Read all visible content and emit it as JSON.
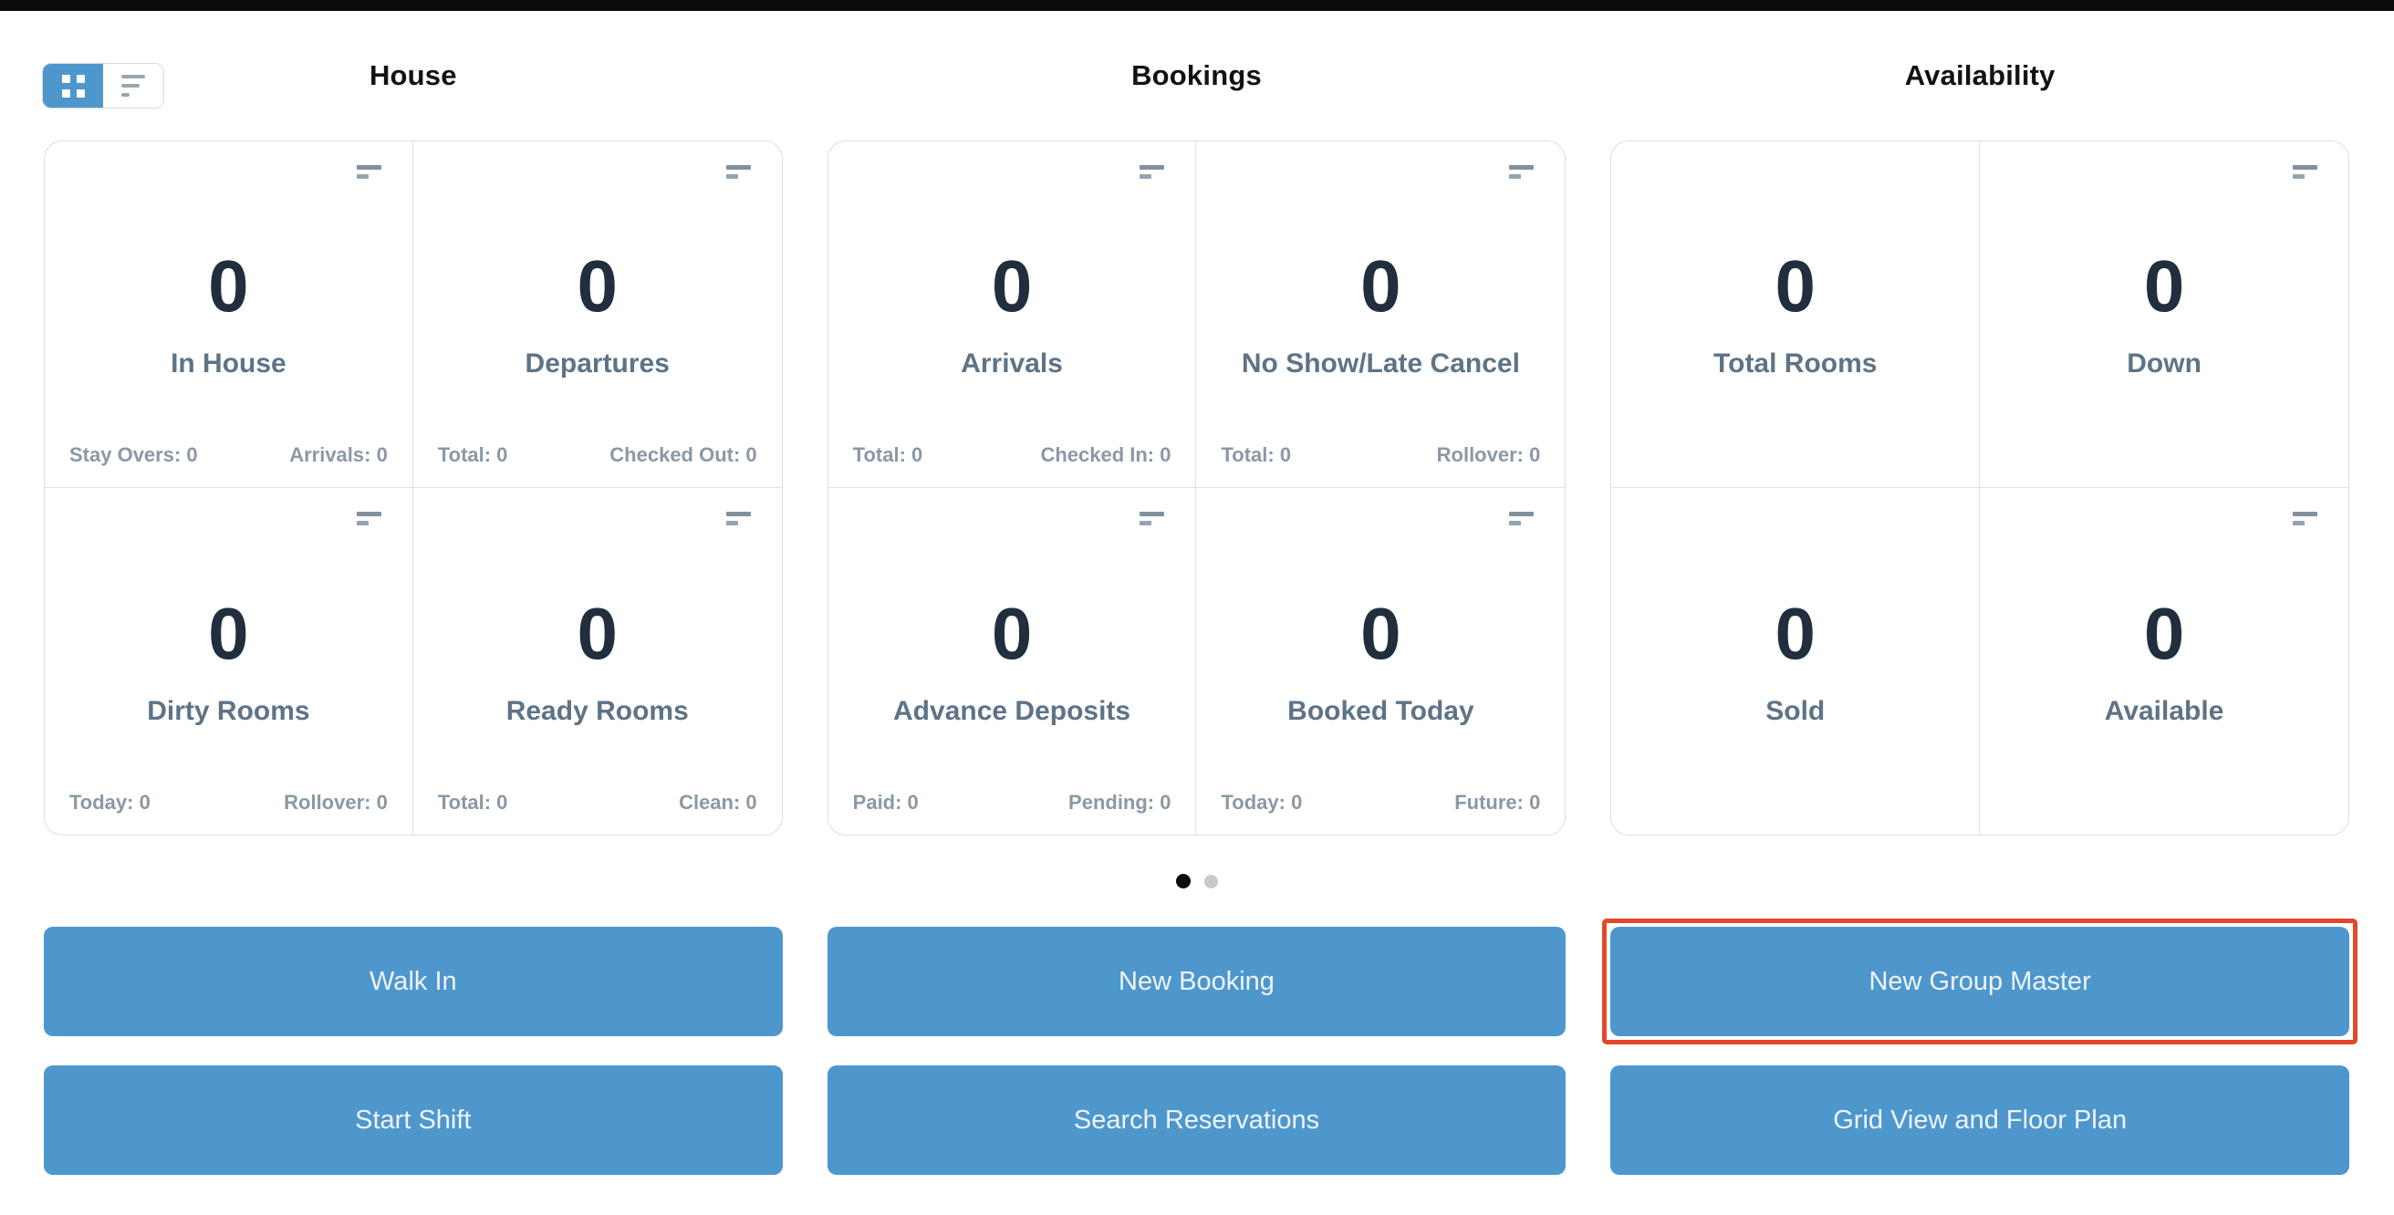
{
  "view_toggle": {
    "active_view": "grid"
  },
  "columns": [
    {
      "header": "House",
      "cards": [
        {
          "value": "0",
          "label": "In House",
          "stat_left": "Stay Overs: 0",
          "stat_right": "Arrivals: 0"
        },
        {
          "value": "0",
          "label": "Departures",
          "stat_left": "Total: 0",
          "stat_right": "Checked Out: 0"
        },
        {
          "value": "0",
          "label": "Dirty Rooms",
          "stat_left": "Today: 0",
          "stat_right": "Rollover: 0"
        },
        {
          "value": "0",
          "label": "Ready Rooms",
          "stat_left": "Total: 0",
          "stat_right": "Clean: 0"
        }
      ],
      "buttons": [
        {
          "label": "Walk In"
        },
        {
          "label": "Start Shift"
        }
      ]
    },
    {
      "header": "Bookings",
      "cards": [
        {
          "value": "0",
          "label": "Arrivals",
          "stat_left": "Total: 0",
          "stat_right": "Checked In: 0"
        },
        {
          "value": "0",
          "label": "No Show/Late Cancel",
          "stat_left": "Total: 0",
          "stat_right": "Rollover: 0"
        },
        {
          "value": "0",
          "label": "Advance Deposits",
          "stat_left": "Paid: 0",
          "stat_right": "Pending: 0"
        },
        {
          "value": "0",
          "label": "Booked Today",
          "stat_left": "Today: 0",
          "stat_right": "Future: 0"
        }
      ],
      "buttons": [
        {
          "label": "New Booking"
        },
        {
          "label": "Search Reservations"
        }
      ]
    },
    {
      "header": "Availability",
      "cards": [
        {
          "value": "0",
          "label": "Total Rooms"
        },
        {
          "value": "0",
          "label": "Down"
        },
        {
          "value": "0",
          "label": "Sold"
        },
        {
          "value": "0",
          "label": "Available"
        }
      ],
      "buttons": [
        {
          "label": "New Group Master",
          "highlighted": true
        },
        {
          "label": "Grid View and Floor Plan"
        }
      ]
    }
  ],
  "carousel": {
    "dot_count": 2,
    "active_index": 0
  },
  "colors": {
    "accent_blue": "#4e97cd",
    "highlight_red": "#e2482c",
    "value_navy": "#212e3e",
    "label_slate": "#5e7386",
    "stat_gray": "#8b98a6",
    "top_bar_black": "#0c0c0c"
  }
}
